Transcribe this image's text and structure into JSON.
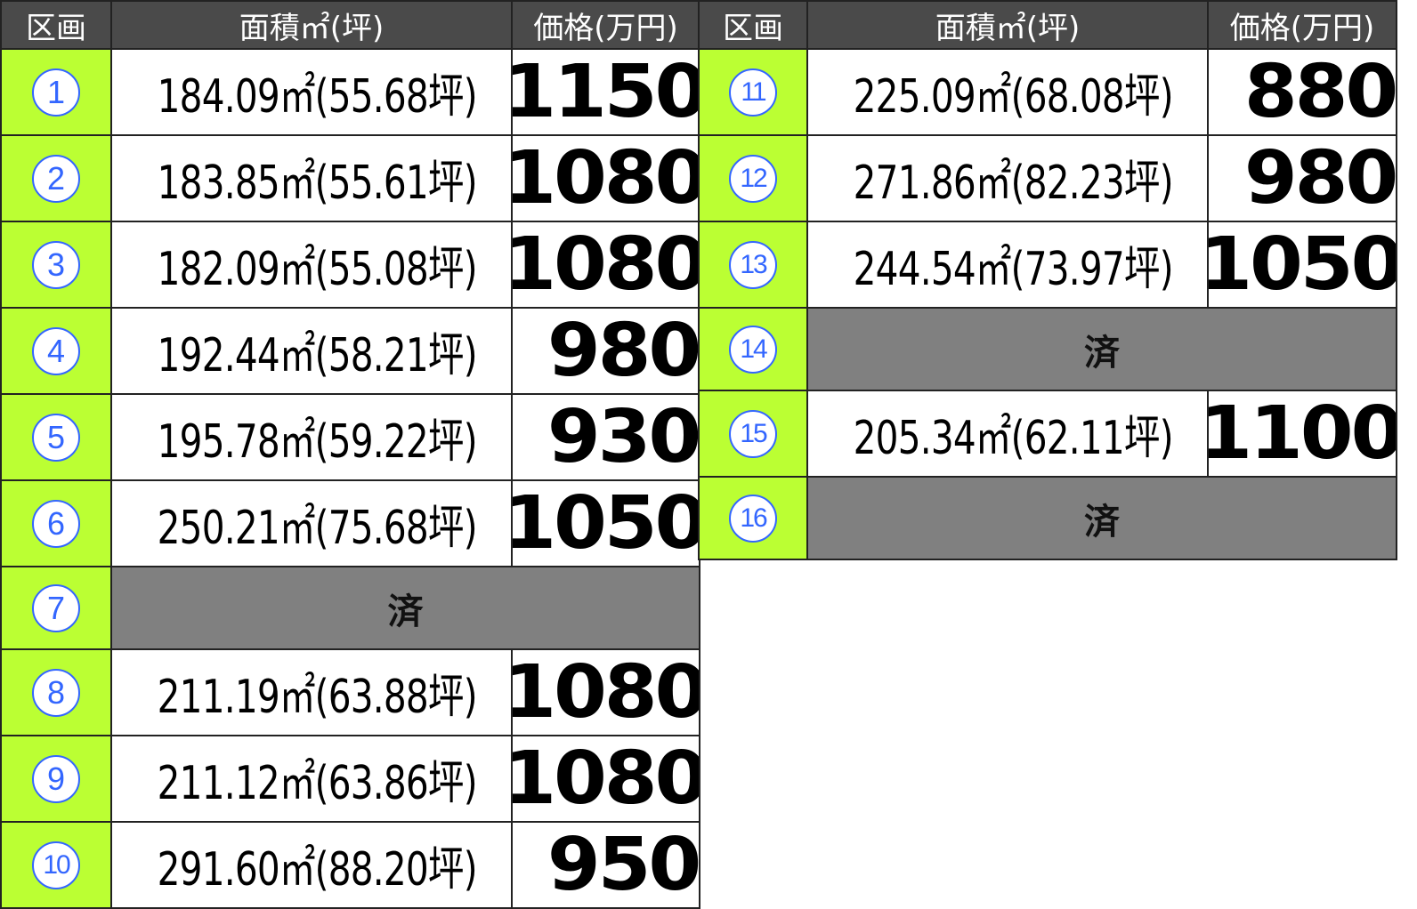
{
  "headers": {
    "lot": "区画",
    "area": "面積㎡(坪)",
    "price": "価格(万円)"
  },
  "sold_label": "済",
  "colors": {
    "header": "#4a4a4a",
    "lot_cell": "#bbff33",
    "sold_cell": "#808080",
    "lot_number": "#3366ff"
  },
  "left_lots": [
    {
      "lot": "1",
      "area": "184.09㎡(55.68坪)",
      "price": "1150"
    },
    {
      "lot": "2",
      "area": "183.85㎡(55.61坪)",
      "price": "1080"
    },
    {
      "lot": "3",
      "area": "182.09㎡(55.08坪)",
      "price": "1080"
    },
    {
      "lot": "4",
      "area": "192.44㎡(58.21坪)",
      "price": "980"
    },
    {
      "lot": "5",
      "area": "195.78㎡(59.22坪)",
      "price": "930"
    },
    {
      "lot": "6",
      "area": "250.21㎡(75.68坪)",
      "price": "1050"
    },
    {
      "lot": "7",
      "sold": true
    },
    {
      "lot": "8",
      "area": "211.19㎡(63.88坪)",
      "price": "1080"
    },
    {
      "lot": "9",
      "area": "211.12㎡(63.86坪)",
      "price": "1080"
    },
    {
      "lot": "10",
      "area": "291.60㎡(88.20坪)",
      "price": "950"
    }
  ],
  "right_lots": [
    {
      "lot": "11",
      "area": "225.09㎡(68.08坪)",
      "price": "880"
    },
    {
      "lot": "12",
      "area": "271.86㎡(82.23坪)",
      "price": "980"
    },
    {
      "lot": "13",
      "area": "244.54㎡(73.97坪)",
      "price": "1050"
    },
    {
      "lot": "14",
      "sold": true
    },
    {
      "lot": "15",
      "area": "205.34㎡(62.11坪)",
      "price": "1100"
    },
    {
      "lot": "16",
      "sold": true
    }
  ]
}
